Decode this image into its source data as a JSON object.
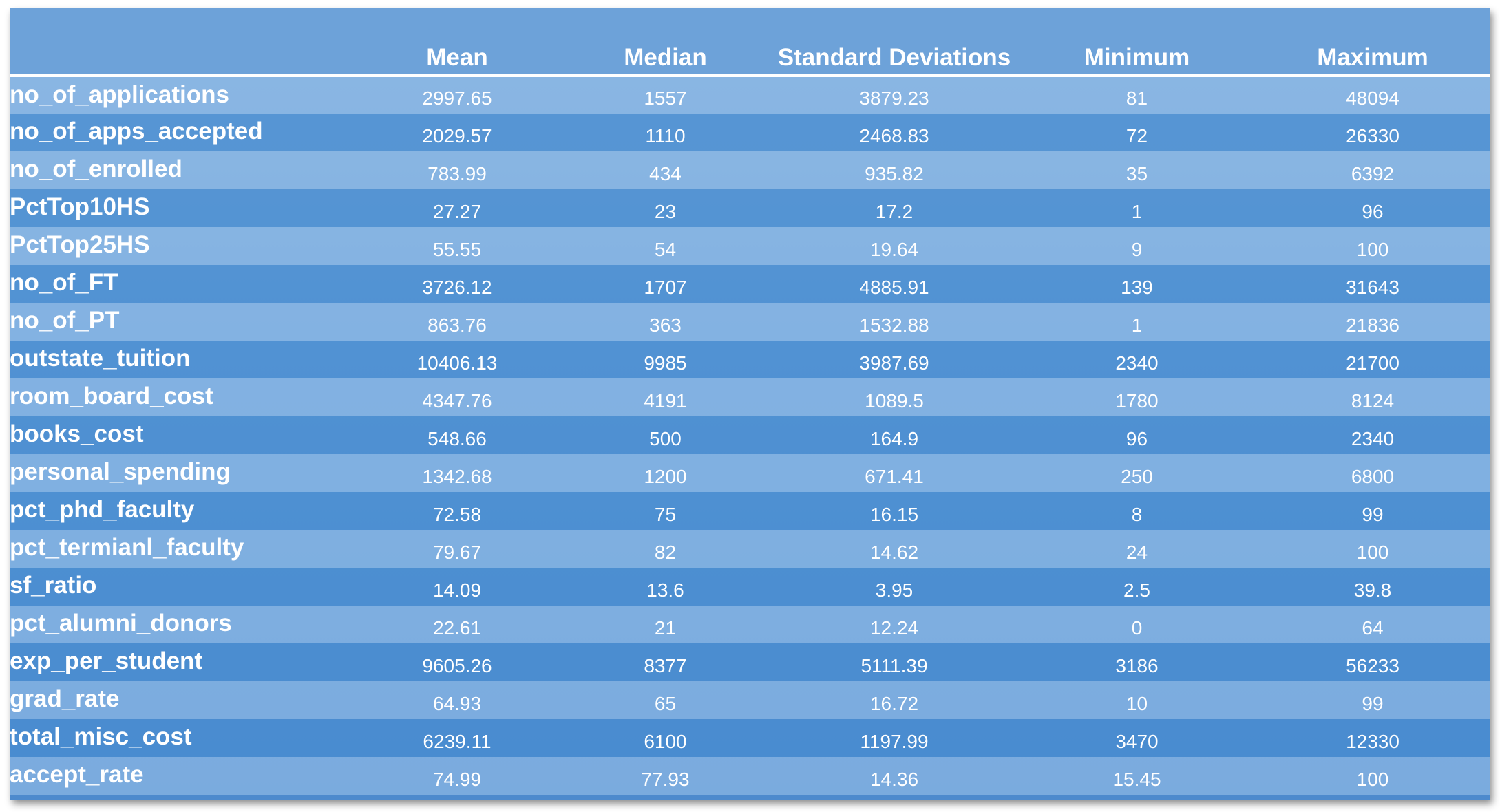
{
  "table": {
    "headers": [
      "",
      "Mean",
      "Median",
      "Standard Deviations",
      "Minimum",
      "Maximum"
    ],
    "rows": [
      {
        "label": "no_of_applications",
        "mean": "2997.65",
        "median": "1557",
        "std": "3879.23",
        "min": "81",
        "max": "48094"
      },
      {
        "label": "no_of_apps_accepted",
        "mean": "2029.57",
        "median": "1110",
        "std": "2468.83",
        "min": "72",
        "max": "26330"
      },
      {
        "label": "no_of_enrolled",
        "mean": "783.99",
        "median": "434",
        "std": "935.82",
        "min": "35",
        "max": "6392"
      },
      {
        "label": "PctTop10HS",
        "mean": "27.27",
        "median": "23",
        "std": "17.2",
        "min": "1",
        "max": "96"
      },
      {
        "label": "PctTop25HS",
        "mean": "55.55",
        "median": "54",
        "std": "19.64",
        "min": "9",
        "max": "100"
      },
      {
        "label": "no_of_FT",
        "mean": "3726.12",
        "median": "1707",
        "std": "4885.91",
        "min": "139",
        "max": "31643"
      },
      {
        "label": "no_of_PT",
        "mean": "863.76",
        "median": "363",
        "std": "1532.88",
        "min": "1",
        "max": "21836"
      },
      {
        "label": "outstate_tuition",
        "mean": "10406.13",
        "median": "9985",
        "std": "3987.69",
        "min": "2340",
        "max": "21700"
      },
      {
        "label": "room_board_cost",
        "mean": "4347.76",
        "median": "4191",
        "std": "1089.5",
        "min": "1780",
        "max": "8124"
      },
      {
        "label": "books_cost",
        "mean": "548.66",
        "median": "500",
        "std": "164.9",
        "min": "96",
        "max": "2340"
      },
      {
        "label": "personal_spending",
        "mean": "1342.68",
        "median": "1200",
        "std": "671.41",
        "min": "250",
        "max": "6800"
      },
      {
        "label": "pct_phd_faculty",
        "mean": "72.58",
        "median": "75",
        "std": "16.15",
        "min": "8",
        "max": "99"
      },
      {
        "label": "pct_termianl_faculty",
        "mean": "79.67",
        "median": "82",
        "std": "14.62",
        "min": "24",
        "max": "100"
      },
      {
        "label": "sf_ratio",
        "mean": "14.09",
        "median": "13.6",
        "std": "3.95",
        "min": "2.5",
        "max": "39.8"
      },
      {
        "label": "pct_alumni_donors",
        "mean": "22.61",
        "median": "21",
        "std": "12.24",
        "min": "0",
        "max": "64"
      },
      {
        "label": "exp_per_student",
        "mean": "9605.26",
        "median": "8377",
        "std": "5111.39",
        "min": "3186",
        "max": "56233"
      },
      {
        "label": "grad_rate",
        "mean": "64.93",
        "median": "65",
        "std": "16.72",
        "min": "10",
        "max": "99"
      },
      {
        "label": "total_misc_cost",
        "mean": "6239.11",
        "median": "6100",
        "std": "1197.99",
        "min": "3470",
        "max": "12330"
      },
      {
        "label": "accept_rate",
        "mean": "74.99",
        "median": "77.93",
        "std": "14.36",
        "min": "15.45",
        "max": "100"
      }
    ]
  }
}
